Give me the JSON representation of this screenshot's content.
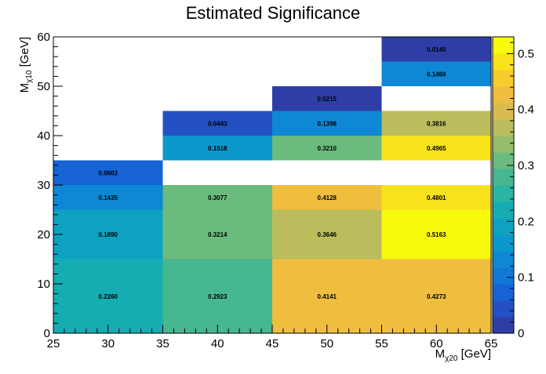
{
  "chart_data": {
    "type": "heatmap",
    "title": "Estimated Significance",
    "xlabel": {
      "main": "M",
      "sub": "χ20",
      "unit": "[GeV]"
    },
    "ylabel": {
      "main": "M",
      "sub": "χ10",
      "unit": "[GeV]"
    },
    "xlim": [
      25,
      65
    ],
    "ylim": [
      0,
      60
    ],
    "x_ticks": [
      25,
      30,
      35,
      40,
      45,
      50,
      55,
      60,
      65
    ],
    "y_ticks": [
      0,
      10,
      20,
      30,
      40,
      50,
      60
    ],
    "zlim": [
      0,
      0.53
    ],
    "z_ticks": [
      0,
      0.1,
      0.2,
      0.3,
      0.4,
      0.5
    ],
    "legend": "colorbar-right",
    "cells": [
      {
        "x": [
          25,
          35
        ],
        "y": [
          0,
          15
        ],
        "value": 0.226,
        "label": "0.2260"
      },
      {
        "x": [
          25,
          35
        ],
        "y": [
          15,
          25
        ],
        "value": 0.189,
        "label": "0.1890"
      },
      {
        "x": [
          25,
          35
        ],
        "y": [
          25,
          30
        ],
        "value": 0.1435,
        "label": "0.1435"
      },
      {
        "x": [
          25,
          35
        ],
        "y": [
          30,
          35
        ],
        "value": 0.0603,
        "label": "0.0603"
      },
      {
        "x": [
          35,
          45
        ],
        "y": [
          0,
          15
        ],
        "value": 0.2923,
        "label": "0.2923"
      },
      {
        "x": [
          35,
          45
        ],
        "y": [
          15,
          25
        ],
        "value": 0.3214,
        "label": "0.3214"
      },
      {
        "x": [
          35,
          45
        ],
        "y": [
          25,
          30
        ],
        "value": 0.3077,
        "label": "0.3077"
      },
      {
        "x": [
          35,
          45
        ],
        "y": [
          35,
          40
        ],
        "value": 0.1518,
        "label": "0.1518"
      },
      {
        "x": [
          35,
          45
        ],
        "y": [
          40,
          45
        ],
        "value": 0.0443,
        "label": "0.0443"
      },
      {
        "x": [
          45,
          55
        ],
        "y": [
          0,
          15
        ],
        "value": 0.4141,
        "label": "0.4141"
      },
      {
        "x": [
          45,
          55
        ],
        "y": [
          15,
          25
        ],
        "value": 0.3646,
        "label": "0.3646"
      },
      {
        "x": [
          45,
          55
        ],
        "y": [
          25,
          30
        ],
        "value": 0.4128,
        "label": "0.4128"
      },
      {
        "x": [
          45,
          55
        ],
        "y": [
          35,
          40
        ],
        "value": 0.321,
        "label": "0.3210"
      },
      {
        "x": [
          45,
          55
        ],
        "y": [
          40,
          45
        ],
        "value": 0.1398,
        "label": "0.1398"
      },
      {
        "x": [
          45,
          55
        ],
        "y": [
          45,
          50
        ],
        "value": 0.0215,
        "label": "0.0215"
      },
      {
        "x": [
          55,
          65
        ],
        "y": [
          0,
          15
        ],
        "value": 0.4273,
        "label": "0.4273"
      },
      {
        "x": [
          55,
          65
        ],
        "y": [
          15,
          25
        ],
        "value": 0.5163,
        "label": "0.5163"
      },
      {
        "x": [
          55,
          65
        ],
        "y": [
          25,
          30
        ],
        "value": 0.4801,
        "label": "0.4801"
      },
      {
        "x": [
          55,
          65
        ],
        "y": [
          35,
          40
        ],
        "value": 0.4965,
        "label": "0.4965"
      },
      {
        "x": [
          55,
          65
        ],
        "y": [
          40,
          45
        ],
        "value": 0.3816,
        "label": "0.3816"
      },
      {
        "x": [
          55,
          65
        ],
        "y": [
          50,
          55
        ],
        "value": 0.1469,
        "label": "0.1469"
      },
      {
        "x": [
          55,
          65
        ],
        "y": [
          55,
          60
        ],
        "value": 0.014,
        "label": "0.0140"
      }
    ],
    "palette": [
      "#2f3ea6",
      "#2350c4",
      "#1663d6",
      "#1278d8",
      "#0e88d4",
      "#0d98cc",
      "#0da3c0",
      "#15adb2",
      "#2ab4a2",
      "#46b78f",
      "#6cbb7e",
      "#95be6c",
      "#bbbd5c",
      "#d9bc4d",
      "#efbe3f",
      "#f8cc2c",
      "#f8e21b",
      "#f9f90e"
    ]
  }
}
